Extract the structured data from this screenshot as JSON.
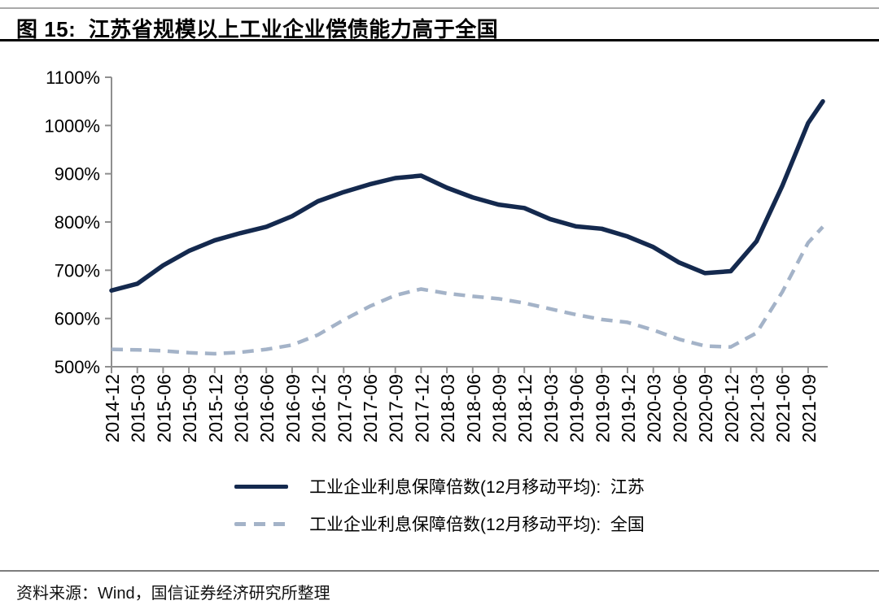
{
  "page": {
    "title": "图 15:  江苏省规模以上工业企业偿债能力高于全国",
    "source_note": "资料来源：Wind，国信证券经济研究所整理"
  },
  "colors": {
    "jiangsu_line": "#14294e",
    "national_line": "#a4b3c8",
    "axis": "#8f8f8f",
    "tick_text": "#000000"
  },
  "chart_data": {
    "type": "line",
    "title": "江苏省规模以上工业企业偿债能力高于全国",
    "figure_label": "图 15",
    "xlabel": "",
    "ylabel": "",
    "ylim": [
      500,
      1100
    ],
    "ytick_labels": [
      "500%",
      "600%",
      "700%",
      "800%",
      "900%",
      "1000%",
      "1100%"
    ],
    "grid": false,
    "legend_position": "bottom",
    "categories": [
      "2014-12",
      "2015-03",
      "2015-06",
      "2015-09",
      "2015-12",
      "2016-03",
      "2016-06",
      "2016-09",
      "2016-12",
      "2017-03",
      "2017-06",
      "2017-09",
      "2017-12",
      "2018-03",
      "2018-06",
      "2018-09",
      "2018-12",
      "2019-03",
      "2019-06",
      "2019-09",
      "2019-12",
      "2020-03",
      "2020-06",
      "2020-09",
      "2020-12",
      "2021-03",
      "2021-06",
      "2021-09"
    ],
    "series": [
      {
        "name": "工业企业利息保障倍数(12月移动平均):  江苏",
        "region": "江苏",
        "line_style": "solid",
        "color": "#14294e",
        "values": [
          658,
          672,
          710,
          740,
          762,
          777,
          790,
          812,
          843,
          862,
          878,
          891,
          896,
          871,
          851,
          836,
          829,
          806,
          791,
          786,
          770,
          748,
          716,
          694,
          698,
          760,
          875,
          1005
        ],
        "line_end_value_beyond_last_tick": 1050
      },
      {
        "name": "工业企业利息保障倍数(12月移动平均):  全国",
        "region": "全国",
        "line_style": "dashed",
        "color": "#a4b3c8",
        "values": [
          536,
          535,
          533,
          529,
          527,
          530,
          536,
          545,
          566,
          597,
          625,
          648,
          661,
          652,
          646,
          641,
          632,
          620,
          608,
          598,
          592,
          576,
          557,
          543,
          541,
          570,
          655,
          757
        ],
        "line_end_value_beyond_last_tick": 790
      }
    ]
  }
}
